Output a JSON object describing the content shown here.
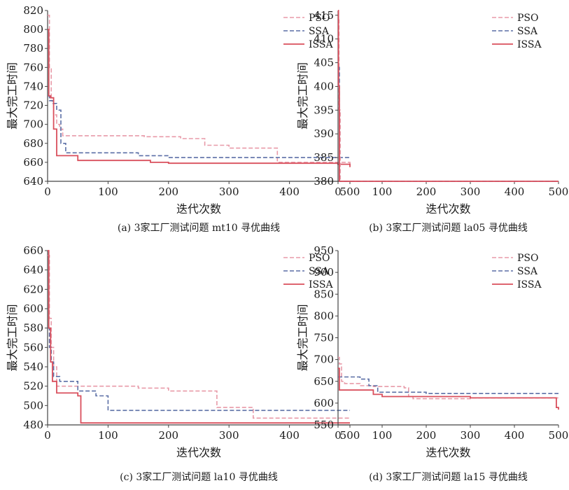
{
  "palette": {
    "PSO": "#e89aa8",
    "SSA": "#5b6fa6",
    "ISSA": "#d94f5c"
  },
  "chart_data": [
    {
      "type": "line",
      "caption": "(a) 3家工厂测试问题 mt10 寻优曲线",
      "xlabel": "迭代次数",
      "ylabel": "最大完工时间",
      "xlim": [
        0,
        500
      ],
      "ylim": [
        640,
        820
      ],
      "xticks": [
        0,
        100,
        200,
        300,
        400,
        500
      ],
      "yticks": [
        640,
        660,
        680,
        700,
        720,
        740,
        760,
        780,
        800,
        820
      ],
      "legend_position": "top-right",
      "series": [
        {
          "name": "PSO",
          "style": "dashed",
          "x": [
            0,
            3,
            6,
            10,
            15,
            20,
            25,
            100,
            160,
            220,
            260,
            300,
            380,
            500
          ],
          "y": [
            815,
            760,
            725,
            710,
            700,
            695,
            688,
            688,
            687,
            685,
            678,
            675,
            660,
            658
          ]
        },
        {
          "name": "SSA",
          "style": "dashed",
          "x": [
            0,
            3,
            8,
            15,
            22,
            30,
            100,
            150,
            200,
            300,
            500
          ],
          "y": [
            730,
            725,
            722,
            715,
            680,
            670,
            670,
            667,
            665,
            665,
            665
          ]
        },
        {
          "name": "ISSA",
          "style": "solid",
          "x": [
            0,
            2,
            5,
            10,
            15,
            40,
            50,
            170,
            200,
            480,
            500
          ],
          "y": [
            800,
            730,
            728,
            695,
            667,
            667,
            662,
            660,
            659,
            658,
            655
          ]
        }
      ]
    },
    {
      "type": "line",
      "caption": "(b) 3家工厂测试问题 la05 寻优曲线",
      "xlabel": "迭代次数",
      "ylabel": "最大完工时间",
      "xlim": [
        0,
        500
      ],
      "ylim": [
        380,
        416
      ],
      "xticks": [
        0,
        100,
        200,
        300,
        400,
        500
      ],
      "yticks": [
        380,
        385,
        390,
        395,
        400,
        405,
        410,
        415
      ],
      "legend_position": "top-right",
      "series": [
        {
          "name": "PSO",
          "style": "dashed",
          "x": [
            0,
            2,
            5,
            500
          ],
          "y": [
            414,
            395,
            380,
            380
          ]
        },
        {
          "name": "SSA",
          "style": "dashed",
          "x": [
            0,
            3,
            500
          ],
          "y": [
            404,
            380,
            380
          ]
        },
        {
          "name": "ISSA",
          "style": "solid",
          "x": [
            0,
            1,
            3,
            500
          ],
          "y": [
            416,
            400,
            380,
            380
          ]
        }
      ]
    },
    {
      "type": "line",
      "caption": "(c) 3家工厂测试问题 la10 寻优曲线",
      "xlabel": "迭代次数",
      "ylabel": "最大完工时间",
      "xlim": [
        0,
        500
      ],
      "ylim": [
        480,
        660
      ],
      "xticks": [
        0,
        100,
        200,
        300,
        400,
        500
      ],
      "yticks": [
        480,
        500,
        520,
        540,
        560,
        580,
        600,
        620,
        640,
        660
      ],
      "legend_position": "top-right",
      "series": [
        {
          "name": "PSO",
          "style": "dashed",
          "x": [
            0,
            3,
            6,
            10,
            15,
            100,
            150,
            200,
            270,
            280,
            340,
            500
          ],
          "y": [
            655,
            590,
            560,
            540,
            520,
            520,
            518,
            515,
            515,
            498,
            487,
            487
          ]
        },
        {
          "name": "SSA",
          "style": "dashed",
          "x": [
            0,
            3,
            6,
            10,
            20,
            50,
            80,
            100,
            300,
            500
          ],
          "y": [
            580,
            560,
            545,
            530,
            525,
            515,
            510,
            495,
            495,
            495
          ]
        },
        {
          "name": "ISSA",
          "style": "solid",
          "x": [
            0,
            2,
            5,
            8,
            15,
            40,
            50,
            55,
            500
          ],
          "y": [
            660,
            580,
            545,
            525,
            513,
            513,
            510,
            482,
            482
          ]
        }
      ]
    },
    {
      "type": "line",
      "caption": "(d) 3家工厂测试问题 la15 寻优曲线",
      "xlabel": "迭代次数",
      "ylabel": "最大完工时间",
      "xlim": [
        0,
        500
      ],
      "ylim": [
        550,
        950
      ],
      "xticks": [
        0,
        100,
        200,
        300,
        400,
        500
      ],
      "yticks": [
        550,
        600,
        650,
        700,
        750,
        800,
        850,
        900,
        950
      ],
      "legend_position": "top-right",
      "series": [
        {
          "name": "PSO",
          "style": "dashed",
          "x": [
            0,
            3,
            8,
            15,
            50,
            80,
            150,
            160,
            170,
            300,
            400,
            500
          ],
          "y": [
            705,
            690,
            650,
            645,
            640,
            638,
            635,
            615,
            610,
            612,
            612,
            612
          ]
        },
        {
          "name": "SSA",
          "style": "dashed",
          "x": [
            0,
            5,
            50,
            70,
            90,
            200,
            500
          ],
          "y": [
            660,
            660,
            655,
            640,
            625,
            622,
            622
          ]
        },
        {
          "name": "ISSA",
          "style": "solid",
          "x": [
            0,
            3,
            50,
            80,
            100,
            300,
            490,
            495,
            500
          ],
          "y": [
            680,
            630,
            630,
            620,
            615,
            612,
            612,
            590,
            585
          ]
        }
      ]
    }
  ]
}
